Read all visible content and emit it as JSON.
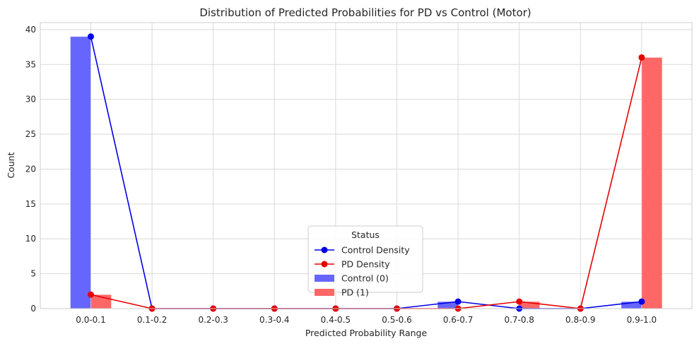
{
  "chart_data": {
    "type": "bar",
    "title": "Distribution of Predicted Probabilities for PD vs Control (Motor)",
    "xlabel": "Predicted Probability Range",
    "ylabel": "Count",
    "categories": [
      "0.0-0.1",
      "0.1-0.2",
      "0.2-0.3",
      "0.3-0.4",
      "0.4-0.5",
      "0.5-0.6",
      "0.6-0.7",
      "0.7-0.8",
      "0.8-0.9",
      "0.9-1.0"
    ],
    "ylim": [
      0,
      41
    ],
    "yticks": [
      0,
      5,
      10,
      15,
      20,
      25,
      30,
      35,
      40
    ],
    "grid": true,
    "legend": {
      "title": "Status",
      "placement": "bottom-center"
    },
    "bar_series": [
      {
        "name": "Control (0)",
        "color": "#6666ff",
        "values": [
          39,
          0,
          0,
          0,
          0,
          0,
          1,
          0,
          0,
          1
        ]
      },
      {
        "name": "PD (1)",
        "color": "#ff6666",
        "values": [
          2,
          0,
          0,
          0,
          0,
          0,
          0,
          1,
          0,
          36
        ]
      }
    ],
    "line_series": [
      {
        "name": "Control Density",
        "color": "#0000e6",
        "values": [
          39,
          0,
          0,
          0,
          0,
          0,
          1,
          0,
          0,
          1
        ]
      },
      {
        "name": "PD Density",
        "color": "#e60000",
        "values": [
          2,
          0,
          0,
          0,
          0,
          0,
          0,
          1,
          0,
          36
        ]
      }
    ]
  }
}
